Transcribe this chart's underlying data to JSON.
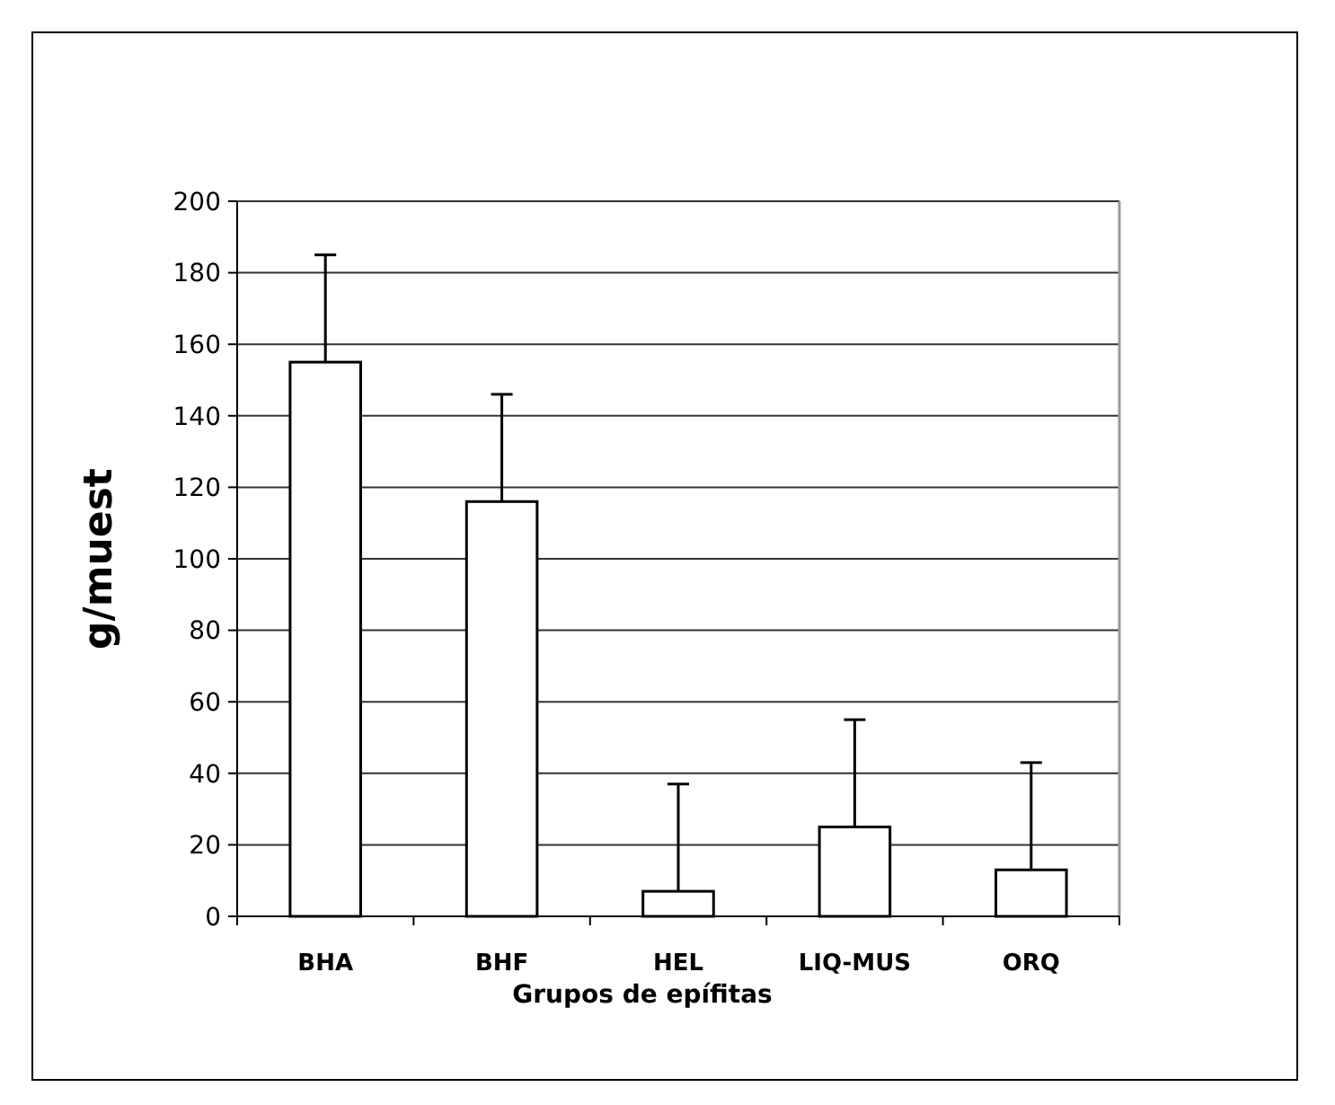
{
  "chart_data": {
    "type": "bar",
    "xlabel": "Grupos de epífitas",
    "ylabel": "g/muest",
    "categories": [
      "BHA",
      "BHF",
      "HEL",
      "LIQ-MUS",
      "ORQ"
    ],
    "values": [
      155,
      116,
      7,
      25,
      13
    ],
    "errors": [
      [
        155,
        185
      ],
      [
        116,
        146
      ],
      [
        7,
        37
      ],
      [
        25,
        55
      ],
      [
        13,
        43
      ]
    ],
    "color": "#ffffff",
    "ylim": [
      0,
      200
    ],
    "yticks": [
      0,
      20,
      40,
      60,
      80,
      100,
      120,
      140,
      160,
      180,
      200
    ],
    "grid": "y"
  }
}
